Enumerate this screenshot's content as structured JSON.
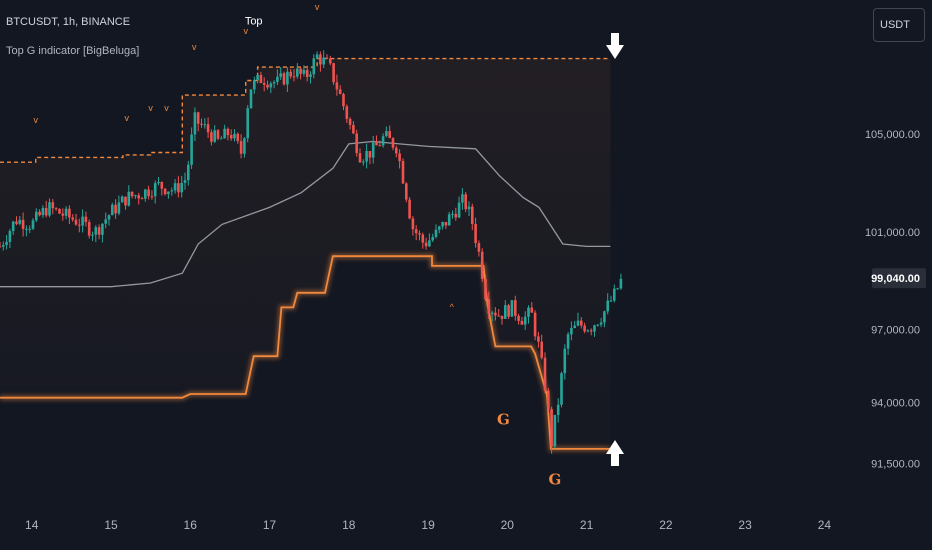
{
  "header": {
    "symbol_line": "BTCUSDT, 1h, BINANCE",
    "indicator_name": "Top G indicator [BigBeluga]"
  },
  "currency_button": "USDT",
  "colors": {
    "background": "#131722",
    "up": "#26a69a",
    "down": "#ef5350",
    "band": "#f0883e",
    "mid_line": "#9598a1",
    "axis_text": "#b2b5be",
    "arrow": "#ffffff"
  },
  "chart_data": {
    "type": "candlestick",
    "title": "",
    "x_ticks": [
      "14",
      "15",
      "16",
      "17",
      "18",
      "19",
      "20",
      "21",
      "22",
      "23",
      "24"
    ],
    "y_ticks": [
      "105,000.00",
      "101,000.00",
      "97,000.00",
      "94,000.00",
      "91,500.00"
    ],
    "last_price_label": "99,040.00",
    "ylim": [
      89800,
      110500
    ],
    "xlim": [
      13.6,
      24.55
    ],
    "close_path": [
      [
        13.6,
        100400
      ],
      [
        13.8,
        101500
      ],
      [
        14.0,
        101300
      ],
      [
        14.2,
        102000
      ],
      [
        14.4,
        101700
      ],
      [
        14.6,
        101400
      ],
      [
        14.8,
        101000
      ],
      [
        15.0,
        101800
      ],
      [
        15.2,
        102400
      ],
      [
        15.4,
        102600
      ],
      [
        15.6,
        102900
      ],
      [
        15.8,
        102700
      ],
      [
        15.95,
        103200
      ],
      [
        16.05,
        105600
      ],
      [
        16.2,
        105200
      ],
      [
        16.35,
        104700
      ],
      [
        16.5,
        105100
      ],
      [
        16.65,
        104200
      ],
      [
        16.75,
        106900
      ],
      [
        16.9,
        107300
      ],
      [
        17.1,
        107100
      ],
      [
        17.3,
        107600
      ],
      [
        17.45,
        107300
      ],
      [
        17.6,
        108200
      ],
      [
        17.75,
        107800
      ],
      [
        17.9,
        106500
      ],
      [
        18.05,
        105000
      ],
      [
        18.15,
        104100
      ],
      [
        18.3,
        104300
      ],
      [
        18.45,
        104900
      ],
      [
        18.6,
        104500
      ],
      [
        18.7,
        103000
      ],
      [
        18.8,
        101200
      ],
      [
        18.95,
        100500
      ],
      [
        19.1,
        100900
      ],
      [
        19.3,
        101700
      ],
      [
        19.45,
        102300
      ],
      [
        19.55,
        101500
      ],
      [
        19.65,
        100000
      ],
      [
        19.75,
        98000
      ],
      [
        19.9,
        97600
      ],
      [
        20.05,
        97900
      ],
      [
        20.2,
        97400
      ],
      [
        20.3,
        97700
      ],
      [
        20.4,
        96200
      ],
      [
        20.5,
        94200
      ],
      [
        20.55,
        92200
      ],
      [
        20.65,
        94200
      ],
      [
        20.75,
        96700
      ],
      [
        20.9,
        97200
      ],
      [
        21.05,
        97100
      ],
      [
        21.2,
        97600
      ],
      [
        21.35,
        98400
      ],
      [
        21.45,
        99100
      ]
    ],
    "overlay_lines": [
      {
        "id": "top_level",
        "style": "dashed",
        "points": [
          [
            13.6,
            103850
          ],
          [
            14.05,
            103850
          ],
          [
            14.05,
            104050
          ],
          [
            15.15,
            104050
          ],
          [
            15.15,
            104150
          ],
          [
            15.5,
            104150
          ],
          [
            15.5,
            104250
          ],
          [
            15.9,
            104250
          ],
          [
            15.9,
            106600
          ],
          [
            16.7,
            106600
          ],
          [
            16.7,
            107200
          ],
          [
            16.85,
            107200
          ],
          [
            16.85,
            107750
          ],
          [
            17.6,
            107750
          ],
          [
            17.6,
            108100
          ],
          [
            21.3,
            108100
          ]
        ]
      },
      {
        "id": "mid_line",
        "style": "solid",
        "points": [
          [
            13.6,
            98750
          ],
          [
            15.0,
            98750
          ],
          [
            15.5,
            98900
          ],
          [
            15.9,
            99300
          ],
          [
            16.1,
            100500
          ],
          [
            16.4,
            101300
          ],
          [
            17.0,
            102000
          ],
          [
            17.4,
            102600
          ],
          [
            17.8,
            103600
          ],
          [
            18.0,
            104600
          ],
          [
            18.3,
            104700
          ],
          [
            19.0,
            104500
          ],
          [
            19.6,
            104400
          ],
          [
            19.9,
            103300
          ],
          [
            20.2,
            102400
          ],
          [
            20.4,
            102000
          ],
          [
            20.7,
            100500
          ],
          [
            21.0,
            100400
          ],
          [
            21.3,
            100400
          ]
        ]
      },
      {
        "id": "lower_band",
        "style": "solid-glow",
        "points": [
          [
            13.6,
            94200
          ],
          [
            15.9,
            94200
          ],
          [
            16.0,
            94350
          ],
          [
            16.7,
            94350
          ],
          [
            16.8,
            95900
          ],
          [
            17.1,
            95900
          ],
          [
            17.15,
            97900
          ],
          [
            17.3,
            97900
          ],
          [
            17.35,
            98500
          ],
          [
            17.7,
            98500
          ],
          [
            17.8,
            100000
          ],
          [
            19.05,
            100000
          ],
          [
            19.05,
            99600
          ],
          [
            19.7,
            99600
          ],
          [
            19.75,
            98000
          ],
          [
            19.85,
            96300
          ],
          [
            20.3,
            96300
          ],
          [
            20.35,
            96000
          ],
          [
            20.5,
            94300
          ],
          [
            20.55,
            92100
          ],
          [
            21.3,
            92100
          ]
        ]
      }
    ],
    "markers": [
      {
        "text": "v",
        "x": 14.05,
        "y": 105450,
        "color": "#f0883e"
      },
      {
        "text": "v",
        "x": 15.2,
        "y": 105550,
        "color": "#f0883e"
      },
      {
        "text": "v",
        "x": 15.5,
        "y": 105950,
        "color": "#f0883e"
      },
      {
        "text": "v",
        "x": 15.7,
        "y": 105950,
        "color": "#f0883e"
      },
      {
        "text": "v",
        "x": 16.05,
        "y": 108450,
        "color": "#f0883e"
      },
      {
        "text": "v",
        "x": 16.7,
        "y": 109100,
        "color": "#f0883e"
      },
      {
        "text": "v",
        "x": 17.6,
        "y": 110100,
        "color": "#f0883e"
      },
      {
        "text": "Top",
        "x": 16.8,
        "y": 109500,
        "color": "#ffffff"
      },
      {
        "text": "^",
        "x": 19.3,
        "y": 97800,
        "color": "#f0883e"
      },
      {
        "text": "G",
        "x": 19.95,
        "y": 93100,
        "color": "#f0883e"
      },
      {
        "text": "G",
        "x": 20.6,
        "y": 90650,
        "color": "#f0883e"
      }
    ]
  }
}
